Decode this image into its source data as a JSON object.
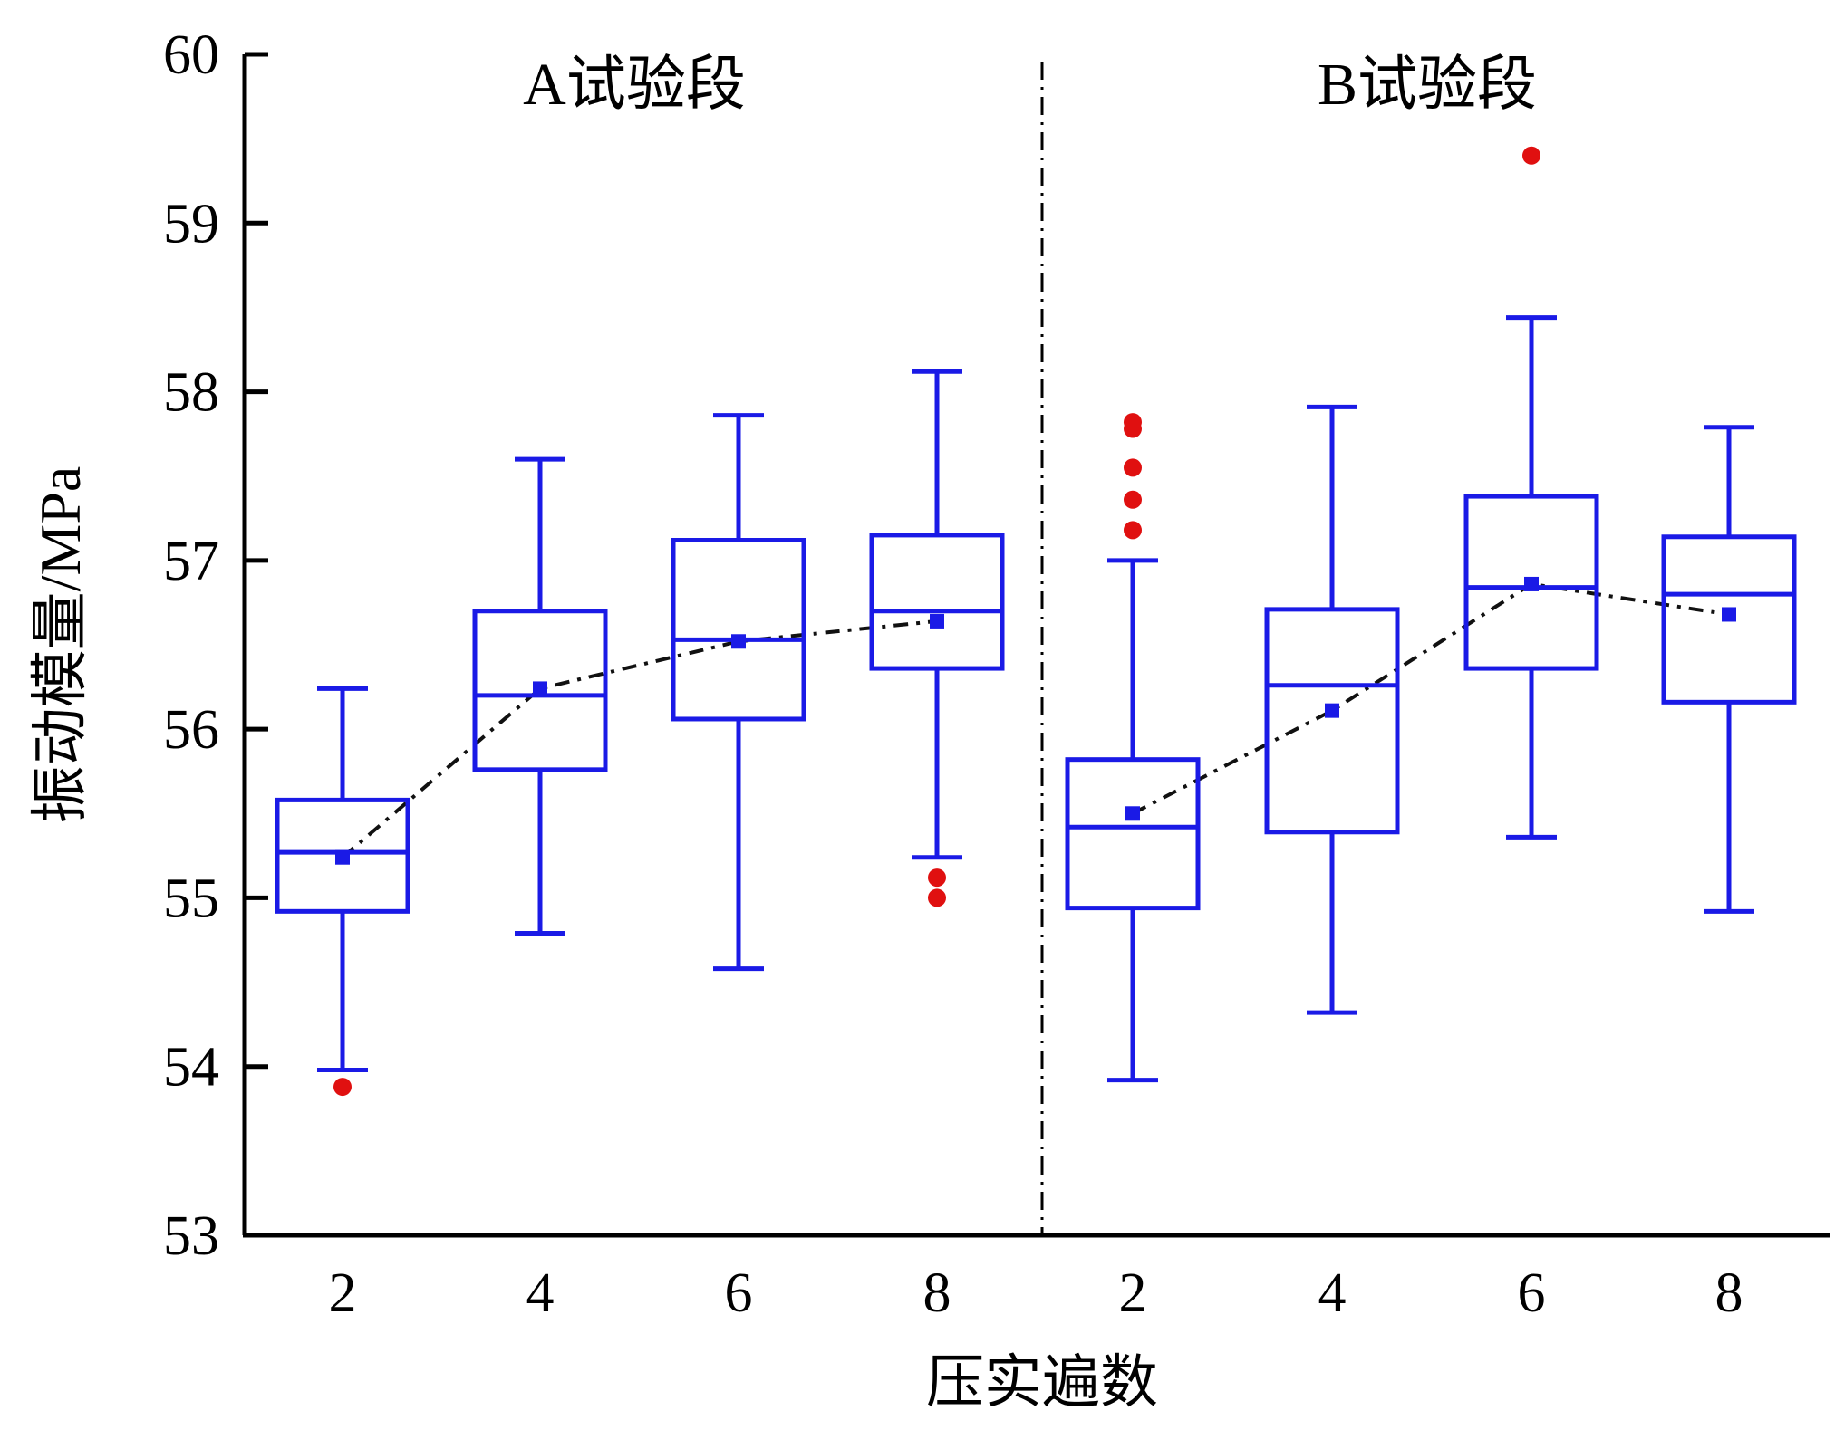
{
  "chart_data": {
    "type": "box",
    "xlabel": "压实遍数",
    "ylabel": "振动模量/MPa",
    "ylim": [
      53,
      60
    ],
    "yticks": [
      "53",
      "54",
      "55",
      "56",
      "57",
      "58",
      "59",
      "60"
    ],
    "grid": false,
    "colors": {
      "box": "#1a1ae6",
      "outlier": "#e01010",
      "trend": "#111111"
    },
    "groups": [
      {
        "label": "A试验段",
        "boxes": [
          {
            "x": "2",
            "whisker_low": 53.98,
            "q1": 54.92,
            "median": 55.27,
            "q3": 55.58,
            "whisker_high": 56.24,
            "mean": 55.24,
            "outliers": [
              53.88
            ]
          },
          {
            "x": "4",
            "whisker_low": 54.79,
            "q1": 55.76,
            "median": 56.2,
            "q3": 56.7,
            "whisker_high": 57.6,
            "mean": 56.24,
            "outliers": []
          },
          {
            "x": "6",
            "whisker_low": 54.58,
            "q1": 56.06,
            "median": 56.53,
            "q3": 57.12,
            "whisker_high": 57.86,
            "mean": 56.52,
            "outliers": []
          },
          {
            "x": "8",
            "whisker_low": 55.24,
            "q1": 56.36,
            "median": 56.7,
            "q3": 57.15,
            "whisker_high": 58.12,
            "mean": 56.64,
            "outliers": [
              55.12,
              55.0
            ]
          }
        ]
      },
      {
        "label": "B试验段",
        "boxes": [
          {
            "x": "2",
            "whisker_low": 53.92,
            "q1": 54.94,
            "median": 55.42,
            "q3": 55.82,
            "whisker_high": 57.0,
            "mean": 55.5,
            "outliers": [
              57.82,
              57.78,
              57.55,
              57.36,
              57.18
            ]
          },
          {
            "x": "4",
            "whisker_low": 54.32,
            "q1": 55.39,
            "median": 56.26,
            "q3": 56.71,
            "whisker_high": 57.91,
            "mean": 56.11,
            "outliers": []
          },
          {
            "x": "6",
            "whisker_low": 55.36,
            "q1": 56.36,
            "median": 56.84,
            "q3": 57.38,
            "whisker_high": 58.44,
            "mean": 56.86,
            "outliers": [
              59.4
            ]
          },
          {
            "x": "8",
            "whisker_low": 54.92,
            "q1": 56.16,
            "median": 56.8,
            "q3": 57.14,
            "whisker_high": 57.79,
            "mean": 56.68,
            "outliers": []
          }
        ]
      }
    ]
  }
}
